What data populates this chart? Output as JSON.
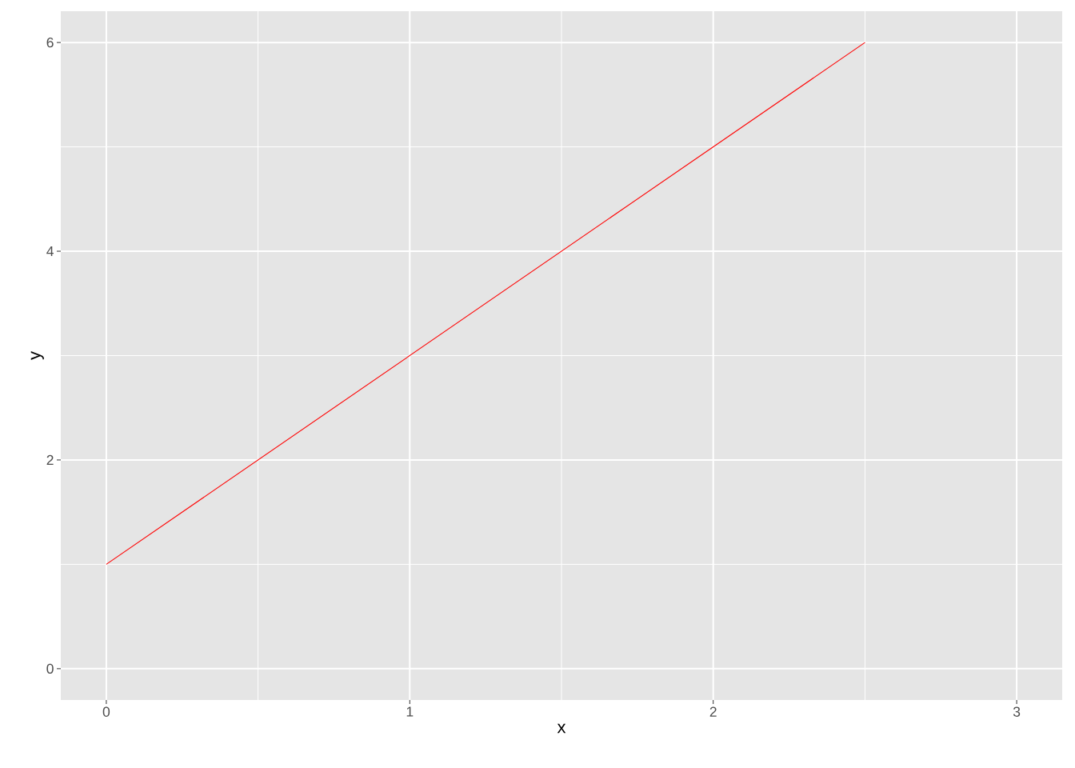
{
  "chart_data": {
    "type": "line",
    "xlabel": "x",
    "ylabel": "y",
    "x": [
      0,
      2.5
    ],
    "series": [
      {
        "color": "#ff0000",
        "values": [
          1,
          6
        ]
      }
    ],
    "xlim": [
      -0.15,
      3.15
    ],
    "ylim": [
      -0.3,
      6.3
    ],
    "xticks": [
      0,
      {
        "value": 0.5,
        "label": null
      },
      1,
      {
        "value": 1.5,
        "label": null
      },
      2,
      {
        "value": 2.5,
        "label": null
      },
      3
    ],
    "yticks": [
      0,
      {
        "value": 1,
        "label": null
      },
      2,
      {
        "value": 3,
        "label": null
      },
      4,
      {
        "value": 5,
        "label": null
      },
      6
    ],
    "grid": true,
    "marker": "none",
    "line_style": "solid"
  }
}
